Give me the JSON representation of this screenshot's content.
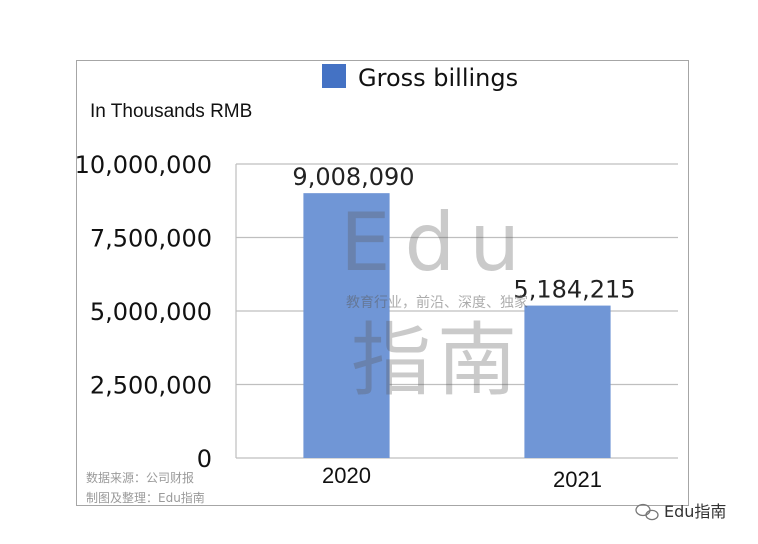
{
  "chart_data": {
    "type": "bar",
    "categories": [
      "2020",
      "2021"
    ],
    "series": [
      {
        "name": "Gross billings",
        "values": [
          9008090,
          5184215
        ]
      }
    ],
    "data_labels": [
      "9,008,090",
      "5,184,215"
    ],
    "ylabel": "In Thousands RMB",
    "ylim": [
      0,
      10000000
    ],
    "yticks": [
      0,
      2500000,
      5000000,
      7500000,
      10000000
    ],
    "ytick_labels": [
      "0",
      "2,500,000",
      "5,000,000",
      "7,500,000",
      "10,000,000"
    ],
    "grid": true,
    "legend_position": "top",
    "bar_color": "#7096d6",
    "legend_color": "#4472c4"
  },
  "source": {
    "line1": "数据来源：公司财报",
    "line2": "制图及整理：Edu指南"
  },
  "watermark": {
    "big_top": "Edu",
    "tagline": "教育行业，前沿、深度、独家",
    "big_bottom": "指南"
  },
  "brand": {
    "label": "Edu指南"
  }
}
